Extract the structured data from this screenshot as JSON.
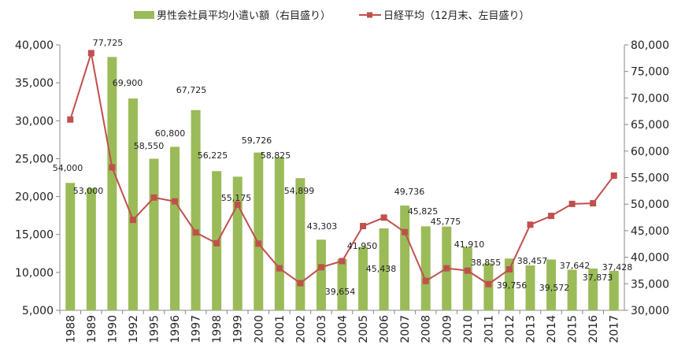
{
  "chart_data": {
    "type": "bar+line",
    "categories": [
      "1988",
      "1989",
      "1990",
      "1992",
      "1995",
      "1996",
      "1997",
      "1998",
      "1999",
      "2000",
      "2001",
      "2002",
      "2003",
      "2004",
      "2005",
      "2006",
      "2007",
      "2008",
      "2009",
      "2010",
      "2011",
      "2012",
      "2013",
      "2014",
      "2015",
      "2016",
      "2017"
    ],
    "series": [
      {
        "name": "男性会社員平均小遣い額（右目盛り）",
        "type": "bar",
        "axis": "right",
        "color": "#9bbb59",
        "values": [
          54000,
          53000,
          77725,
          69900,
          58550,
          60800,
          67725,
          56225,
          55175,
          59726,
          58825,
          54899,
          43303,
          39654,
          41950,
          45438,
          49736,
          45825,
          45775,
          41910,
          38855,
          39756,
          38457,
          39572,
          37642,
          37873,
          37428
        ],
        "labels": [
          "54,000",
          "53,000",
          "77,725",
          "69,900",
          "58,550",
          "60,800",
          "67,725",
          "56,225",
          "55,175",
          "59,726",
          "58,825",
          "54,899",
          "43,303",
          "39,654",
          "41,950",
          "45,438",
          "49,736",
          "45,825",
          "45,775",
          "41,910",
          "38,855",
          "39,756",
          "38,457",
          "39,572",
          "37,642",
          "37,873",
          "37,428"
        ]
      },
      {
        "name": "日経平均（12月末、左目盛り）",
        "type": "line",
        "axis": "left",
        "color": "#c0504d",
        "values": [
          30159,
          38916,
          23849,
          16925,
          19868,
          19361,
          15259,
          13842,
          18934,
          13786,
          10543,
          8579,
          10677,
          11489,
          16111,
          17226,
          15308,
          8860,
          10546,
          10229,
          8455,
          10395,
          16291,
          17451,
          19034,
          19114,
          22765
        ]
      }
    ],
    "left_axis": {
      "min": 5000,
      "max": 40000,
      "step": 5000,
      "ticks": [
        "5,000",
        "10,000",
        "15,000",
        "20,000",
        "25,000",
        "30,000",
        "35,000",
        "40,000"
      ]
    },
    "right_axis": {
      "min": 30000,
      "max": 80000,
      "step": 5000,
      "ticks": [
        "30,000",
        "35,000",
        "40,000",
        "45,000",
        "50,000",
        "55,000",
        "60,000",
        "65,000",
        "70,000",
        "75,000",
        "80,000"
      ]
    },
    "legend_position": "top",
    "grid": false
  }
}
